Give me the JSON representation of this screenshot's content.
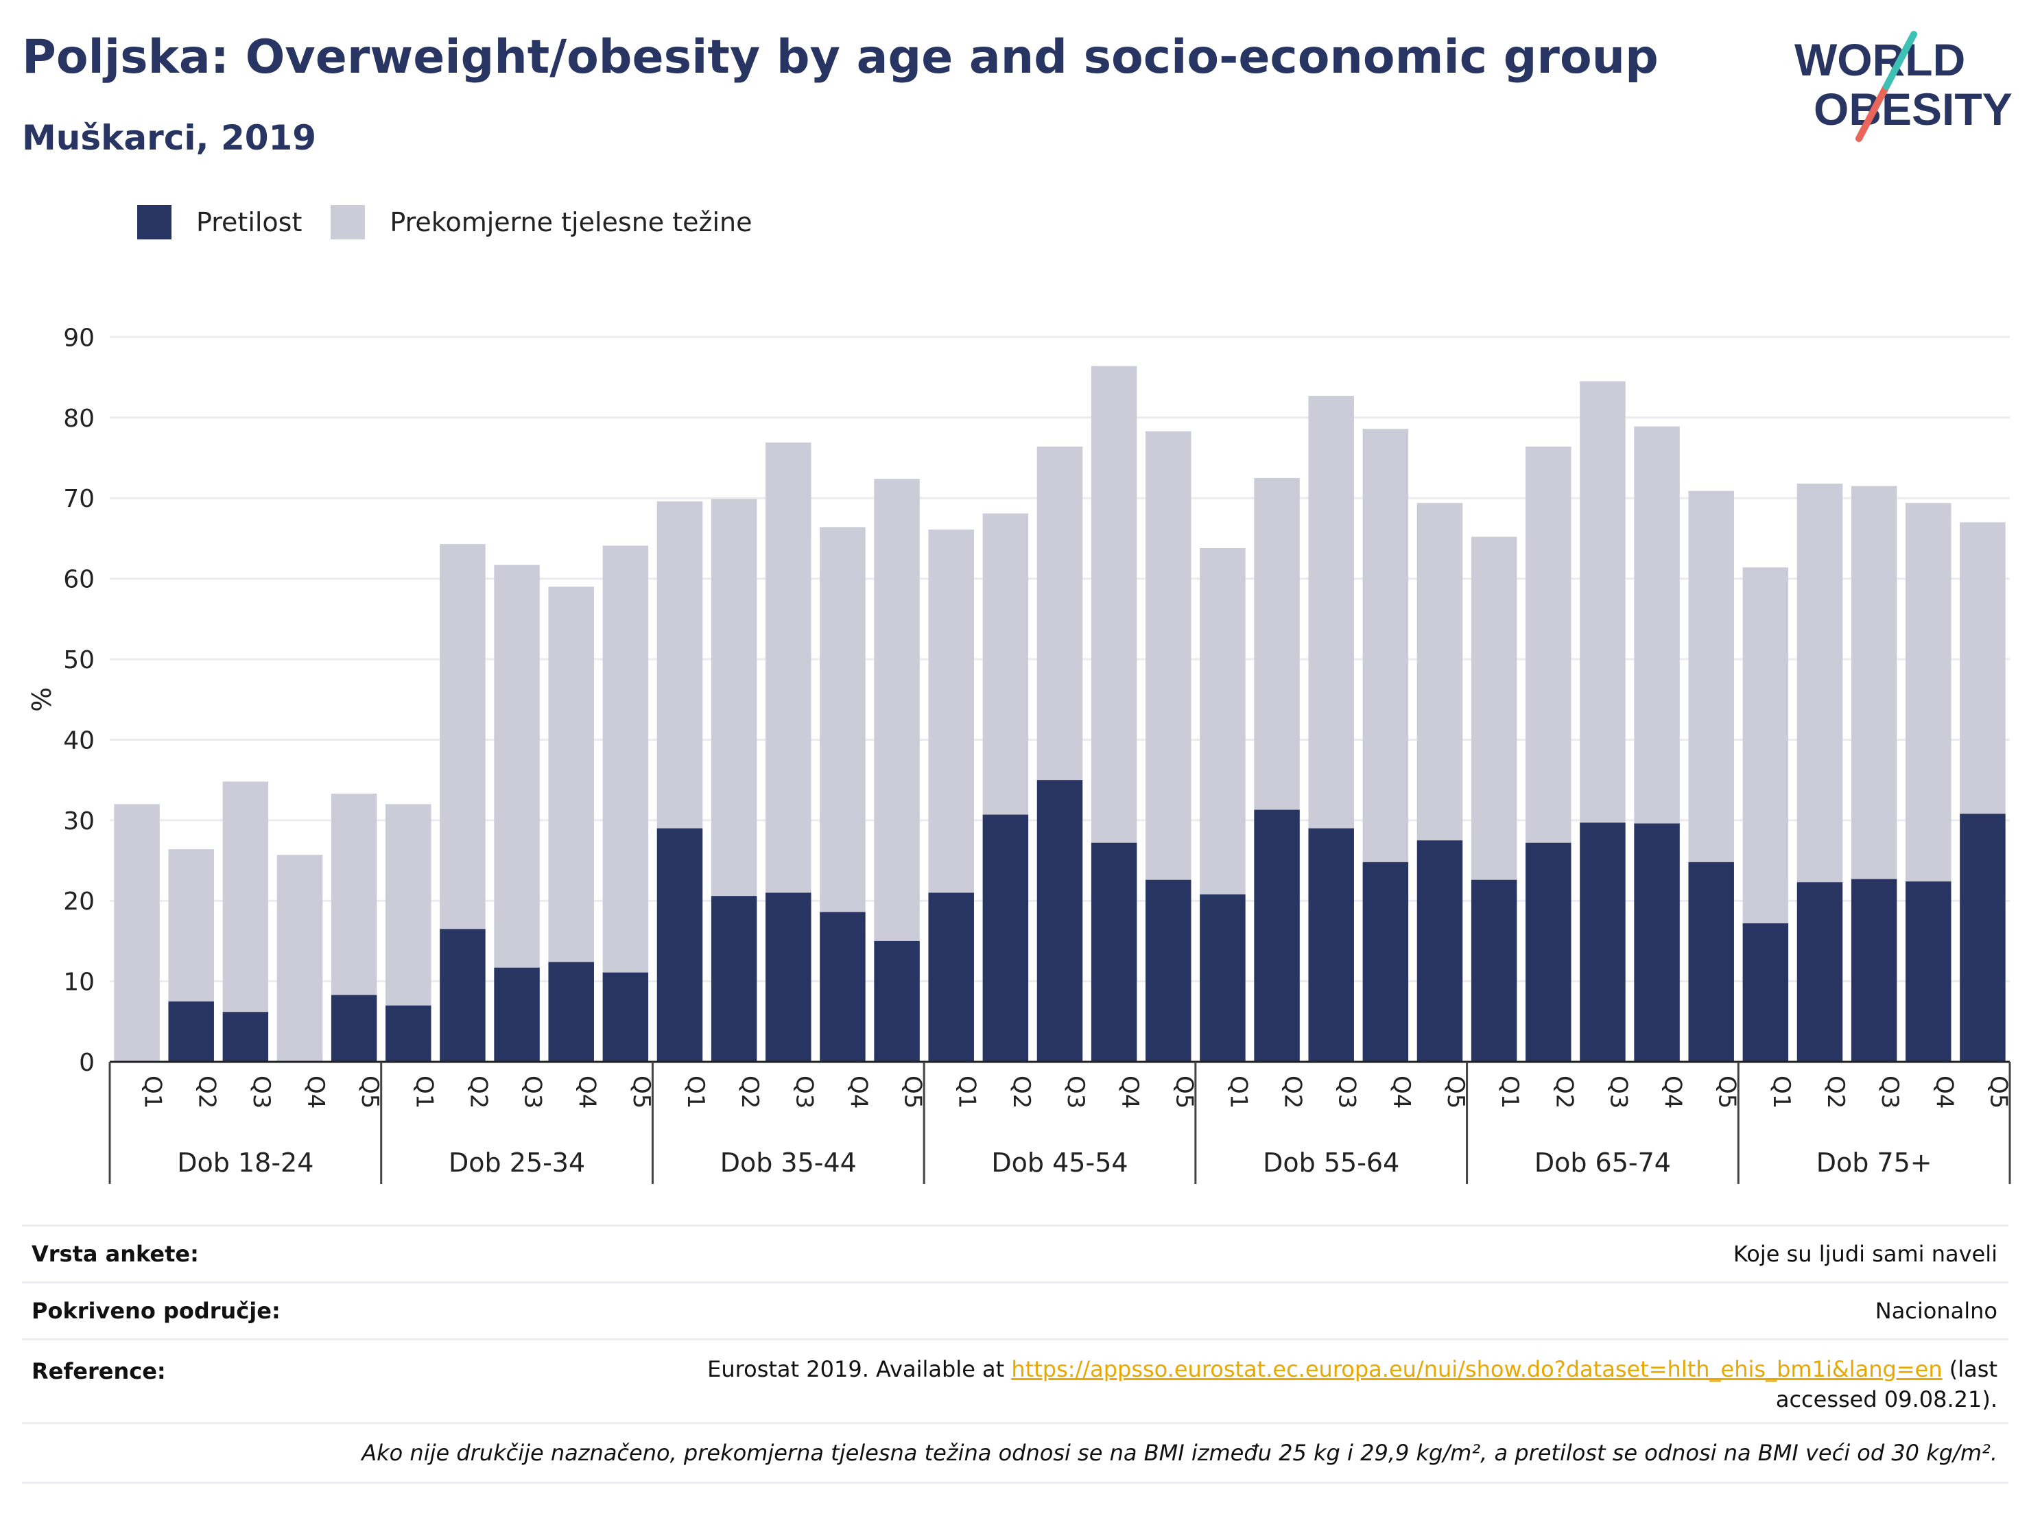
{
  "title": "Poljska: Overweight/obesity by age and socio-economic group",
  "subtitle": "Muškarci, 2019",
  "logo": {
    "line1": "WORLD",
    "line2": "OBESITY"
  },
  "colors": {
    "obesity": "#283562",
    "overweight": "#cbccd7",
    "title": "#283562",
    "link": "#e8a800"
  },
  "chart_data": {
    "type": "bar",
    "stacked": true,
    "ylabel": "%",
    "ylim": [
      0,
      90
    ],
    "yticks": [
      0,
      10,
      20,
      30,
      40,
      50,
      60,
      70,
      80,
      90
    ],
    "legend_position": "top-left",
    "grid": true,
    "groups": [
      "Dob 18-24",
      "Dob 25-34",
      "Dob 35-44",
      "Dob 45-54",
      "Dob 55-64",
      "Dob 65-74",
      "Dob 75+"
    ],
    "categories": [
      "Q1",
      "Q2",
      "Q3",
      "Q4",
      "Q5"
    ],
    "series": [
      {
        "name": "Pretilost",
        "values": [
          [
            0,
            7.5,
            6.2,
            0,
            8.3
          ],
          [
            7.0,
            16.5,
            11.7,
            12.4,
            11.1
          ],
          [
            29.0,
            20.6,
            21.0,
            18.6,
            15.0
          ],
          [
            21.0,
            30.7,
            35.0,
            27.2,
            22.6
          ],
          [
            20.8,
            31.3,
            29.0,
            24.8,
            27.5
          ],
          [
            22.6,
            27.2,
            29.7,
            29.6,
            24.8
          ],
          [
            17.2,
            22.3,
            22.7,
            22.4,
            30.8
          ]
        ]
      },
      {
        "name": "Prekomjerne tjelesne težine",
        "values": [
          [
            32.0,
            18.9,
            28.6,
            25.7,
            25.0
          ],
          [
            25.0,
            47.8,
            50.0,
            46.6,
            53.0
          ],
          [
            40.6,
            49.3,
            55.9,
            47.8,
            57.4
          ],
          [
            45.1,
            37.4,
            41.4,
            59.2,
            55.7
          ],
          [
            43.0,
            41.2,
            53.7,
            53.8,
            41.9
          ],
          [
            42.6,
            49.2,
            54.8,
            49.3,
            46.1
          ],
          [
            44.2,
            49.5,
            48.8,
            47.0,
            36.2
          ]
        ]
      }
    ]
  },
  "info": {
    "survey_label": "Vrsta ankete:",
    "survey_value": "Koje su ljudi sami naveli",
    "area_label": "Pokriveno područje:",
    "area_value": "Nacionalno",
    "ref_label": "Reference:",
    "ref_prefix": "Eurostat 2019. Available at ",
    "ref_link": "https://appsso.eurostat.ec.europa.eu/nui/show.do?dataset=hlth_ehis_bm1i&lang=en",
    "ref_suffix": " (last accessed 09.08.21).",
    "note": "Ako nije drukčije naznačeno, prekomjerna tjelesna težina odnosi se na BMI između 25 kg i 29,9 kg/m², a pretilost se odnosi na BMI veći od 30 kg/m²."
  }
}
